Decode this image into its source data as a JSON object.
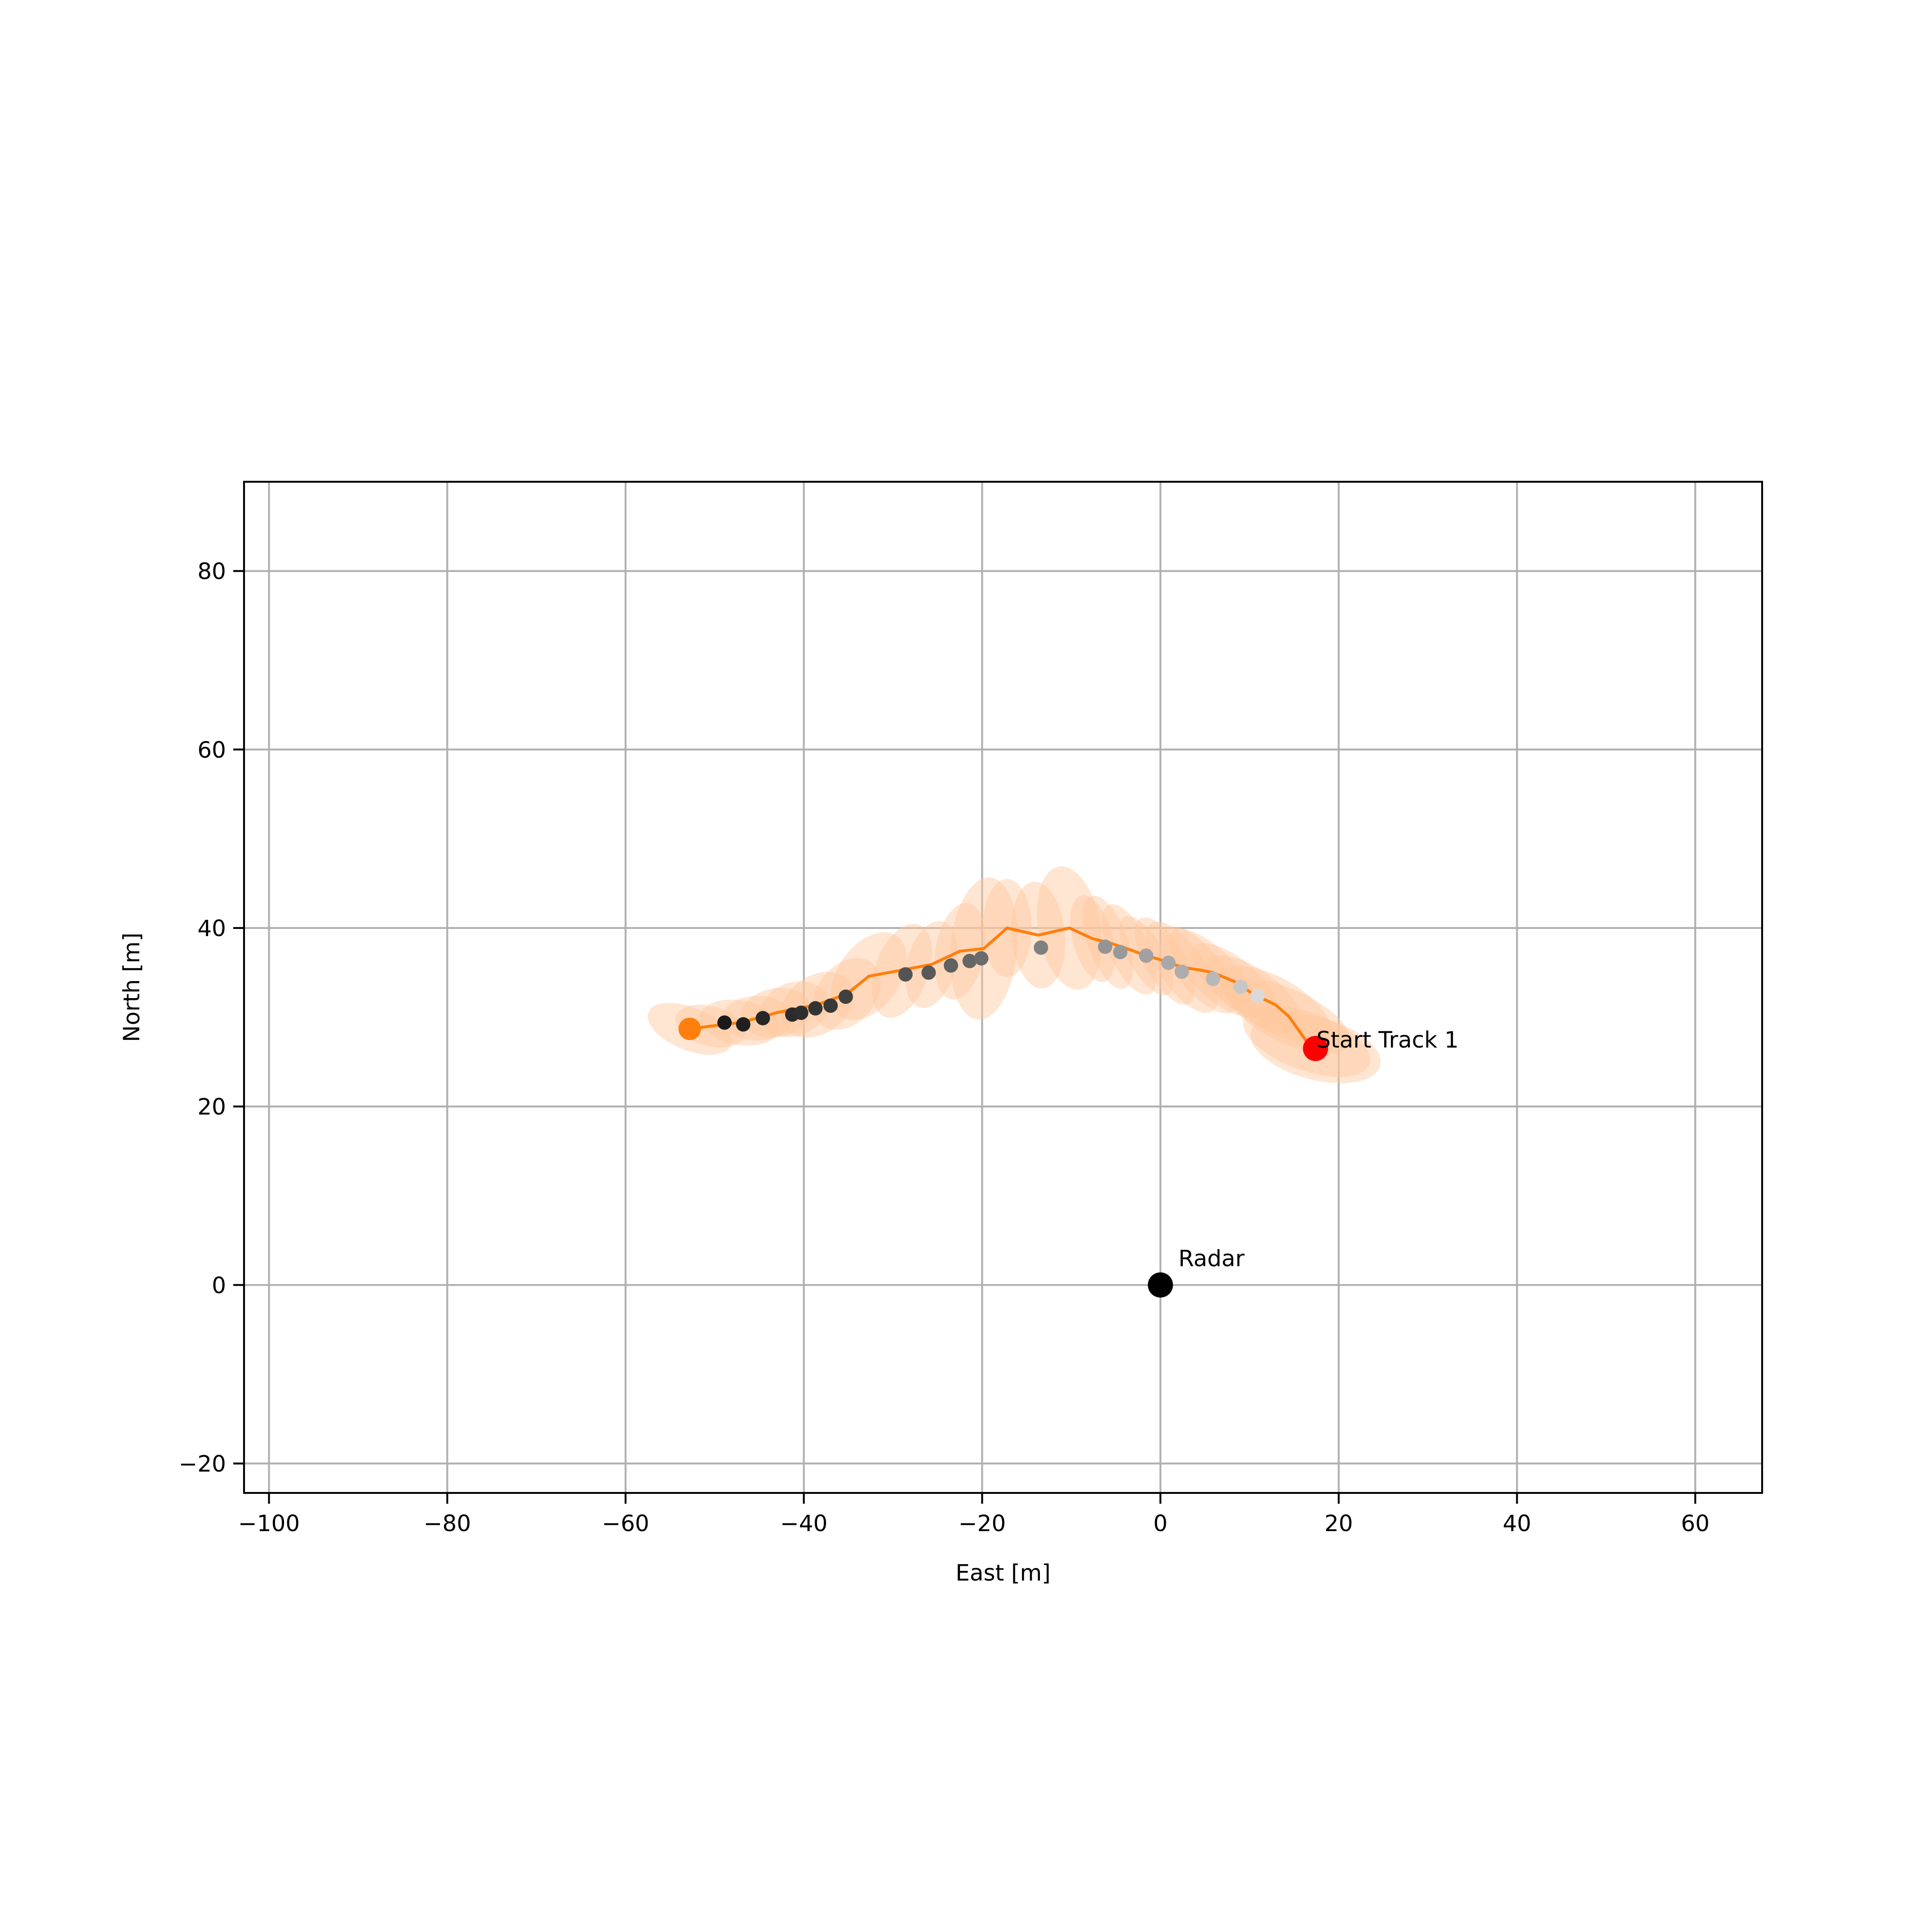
{
  "chart_data": {
    "type": "scatter",
    "title": "",
    "xlabel": "East [m]",
    "ylabel": "North [m]",
    "xlim": [
      -102.8,
      67.5
    ],
    "ylim": [
      -23.3,
      90
    ],
    "grid": true,
    "xticks": [
      -100,
      -80,
      -60,
      -40,
      -20,
      0,
      20,
      40,
      60
    ],
    "yticks": [
      -20,
      0,
      20,
      40,
      60,
      80
    ],
    "xtick_labels": [
      "−100",
      "−80",
      "−60",
      "−40",
      "−20",
      "0",
      "20",
      "40",
      "60"
    ],
    "ytick_labels": [
      "−20",
      "0",
      "20",
      "40",
      "60",
      "80"
    ],
    "radar": {
      "x": 0,
      "y": 0,
      "label": "Radar",
      "color": "#000000"
    },
    "track_start": {
      "x": 17.4,
      "y": 26.5,
      "label": "Start Track 1",
      "color": "#ff0000"
    },
    "track_end": {
      "x": -52.8,
      "y": 28.7,
      "color": "#ff7f0e"
    },
    "track": {
      "color": "#ff7f0e",
      "x": [
        17.4,
        16.4,
        14.4,
        12.9,
        10.4,
        8.3,
        5.9,
        4.4,
        2.4,
        0.5,
        -1.6,
        -3.5,
        -5.9,
        -7.6,
        -10.2,
        -13.7,
        -17.2,
        -19.8,
        -22.5,
        -25.7,
        -32.7,
        -35.2,
        -38.5,
        -41.1,
        -43.1,
        -45.2,
        -47.2,
        -50.5,
        -52.8
      ],
      "y": [
        26.5,
        27.3,
        30.1,
        31.4,
        32.6,
        34.0,
        35.0,
        35.3,
        35.6,
        36.3,
        36.9,
        37.6,
        38.4,
        38.8,
        40.0,
        39.2,
        40.0,
        37.7,
        37.4,
        35.9,
        34.6,
        32.6,
        31.4,
        30.9,
        30.5,
        29.9,
        29.4,
        29.0,
        28.7
      ]
    },
    "measurements": {
      "x": [
        -48.9,
        -46.8,
        -44.6,
        -41.3,
        -40.3,
        -38.7,
        -37.0,
        -35.3,
        -28.6,
        -26.0,
        -23.5,
        -21.4,
        -20.1,
        -13.4,
        -6.2,
        -4.5,
        -1.6,
        0.9,
        2.4,
        5.9,
        9.0,
        10.9
      ],
      "y": [
        29.4,
        29.2,
        29.9,
        30.3,
        30.5,
        31.0,
        31.3,
        32.3,
        34.8,
        35.0,
        35.8,
        36.3,
        36.6,
        37.8,
        37.9,
        37.3,
        36.9,
        36.1,
        35.1,
        34.3,
        33.4,
        32.4
      ],
      "shade": [
        0.1,
        0.12,
        0.15,
        0.17,
        0.18,
        0.2,
        0.22,
        0.25,
        0.33,
        0.35,
        0.38,
        0.4,
        0.42,
        0.5,
        0.58,
        0.6,
        0.63,
        0.66,
        0.68,
        0.72,
        0.78,
        0.85
      ]
    },
    "covariance_ellipses": {
      "color": "#ffc89e",
      "items": [
        {
          "x": -52.8,
          "y": 28.7,
          "w": 10.0,
          "h": 4.8,
          "angle": -22
        },
        {
          "x": -50.5,
          "y": 29.0,
          "w": 8.0,
          "h": 4.5,
          "angle": -15
        },
        {
          "x": -47.2,
          "y": 29.4,
          "w": 9.0,
          "h": 5.0,
          "angle": -10
        },
        {
          "x": -45.2,
          "y": 29.9,
          "w": 8.0,
          "h": 5.0,
          "angle": 0
        },
        {
          "x": -43.1,
          "y": 30.5,
          "w": 8.0,
          "h": 5.5,
          "angle": 10
        },
        {
          "x": -41.1,
          "y": 30.9,
          "w": 8.0,
          "h": 6.0,
          "angle": 20
        },
        {
          "x": -38.5,
          "y": 31.4,
          "w": 9.0,
          "h": 6.5,
          "angle": 35
        },
        {
          "x": -35.2,
          "y": 32.6,
          "w": 9.0,
          "h": 6.5,
          "angle": 50
        },
        {
          "x": -32.7,
          "y": 34.6,
          "w": 11.0,
          "h": 7.0,
          "angle": 55
        },
        {
          "x": -29.0,
          "y": 35.2,
          "w": 11.0,
          "h": 6.0,
          "angle": 70
        },
        {
          "x": -25.7,
          "y": 35.9,
          "w": 10.0,
          "h": 5.5,
          "angle": 75
        },
        {
          "x": -22.5,
          "y": 37.4,
          "w": 11.0,
          "h": 5.5,
          "angle": 80
        },
        {
          "x": -19.8,
          "y": 37.7,
          "w": 16.0,
          "h": 7.5,
          "angle": 85
        },
        {
          "x": -17.2,
          "y": 40.0,
          "w": 11.0,
          "h": 5.5,
          "angle": 90
        },
        {
          "x": -13.7,
          "y": 39.2,
          "w": 12.0,
          "h": 6.0,
          "angle": -85
        },
        {
          "x": -10.2,
          "y": 40.0,
          "w": 14.0,
          "h": 7.0,
          "angle": -80
        },
        {
          "x": -7.6,
          "y": 38.8,
          "w": 10.0,
          "h": 4.5,
          "angle": -75
        },
        {
          "x": -5.9,
          "y": 38.4,
          "w": 11.0,
          "h": 4.5,
          "angle": -70
        },
        {
          "x": -3.5,
          "y": 37.6,
          "w": 11.0,
          "h": 4.5,
          "angle": -65
        },
        {
          "x": -1.6,
          "y": 36.9,
          "w": 10.0,
          "h": 4.0,
          "angle": -60
        },
        {
          "x": 0.5,
          "y": 36.3,
          "w": 11.0,
          "h": 4.5,
          "angle": -60
        },
        {
          "x": 2.4,
          "y": 35.6,
          "w": 12.0,
          "h": 5.0,
          "angle": -55
        },
        {
          "x": 4.4,
          "y": 35.3,
          "w": 12.0,
          "h": 5.0,
          "angle": -50
        },
        {
          "x": 5.9,
          "y": 35.0,
          "w": 13.0,
          "h": 5.0,
          "angle": -45
        },
        {
          "x": 8.3,
          "y": 34.0,
          "w": 12.0,
          "h": 5.0,
          "angle": -40
        },
        {
          "x": 10.4,
          "y": 32.6,
          "w": 13.0,
          "h": 5.5,
          "angle": -35
        },
        {
          "x": 12.9,
          "y": 31.4,
          "w": 14.0,
          "h": 6.0,
          "angle": -30
        },
        {
          "x": 14.4,
          "y": 30.1,
          "w": 15.0,
          "h": 6.0,
          "angle": -25
        },
        {
          "x": 16.4,
          "y": 27.3,
          "w": 15.0,
          "h": 6.5,
          "angle": -20
        },
        {
          "x": 17.4,
          "y": 26.5,
          "w": 15.0,
          "h": 7.0,
          "angle": -15
        }
      ]
    }
  }
}
